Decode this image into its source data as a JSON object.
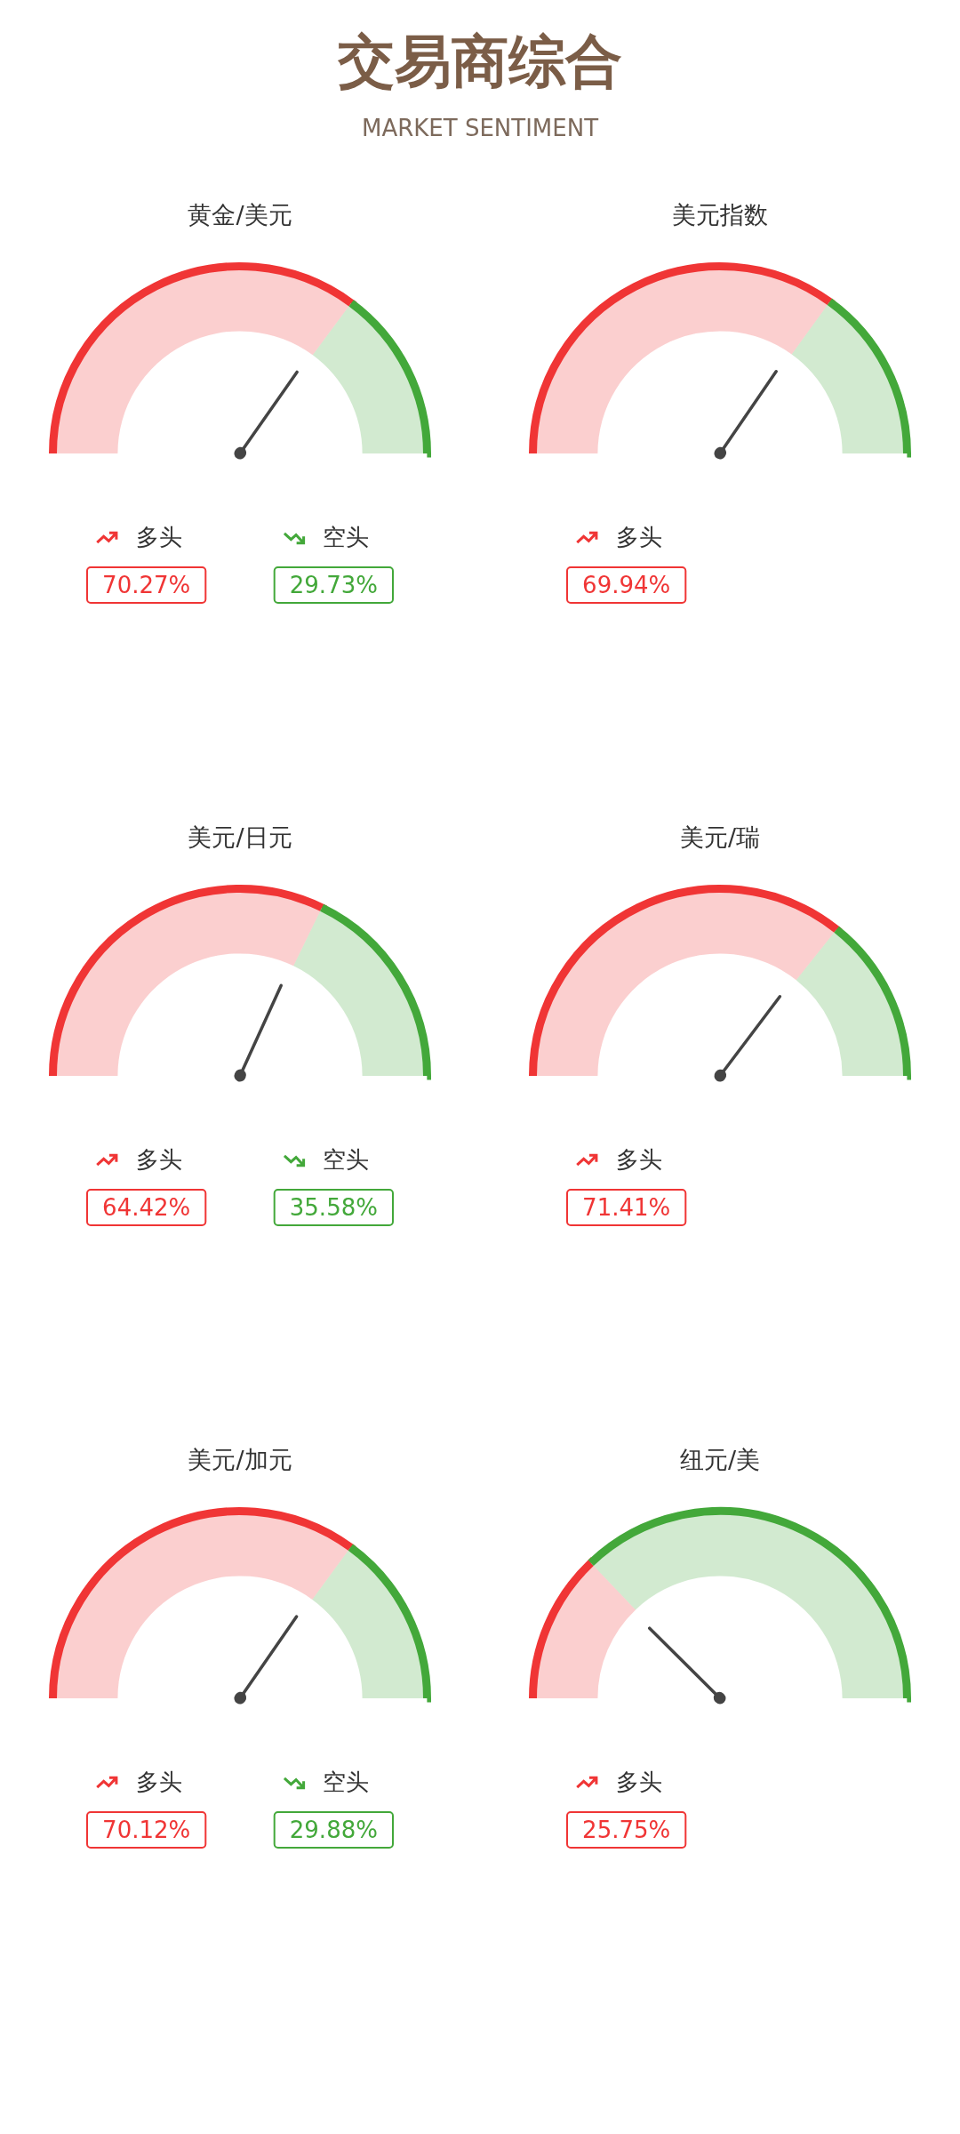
{
  "chart_data": [
    {
      "type": "other",
      "title": "交易商综合",
      "subtitle": "MARKET SENTIMENT"
    },
    {
      "type": "donut",
      "title": "黄金/美元",
      "categories": [
        "多头",
        "空头"
      ],
      "values": [
        70.27,
        29.73
      ],
      "colors": [
        "#f03535",
        "#43a83a"
      ],
      "value_labels": [
        "70.27%",
        "29.73%"
      ],
      "needle": "多头",
      "legend": "bottom"
    },
    {
      "type": "donut",
      "title": "美元指数",
      "categories": [
        "多头",
        null
      ],
      "values": [
        69.94,
        30.06
      ],
      "colors": [
        "#f03535",
        "#43a83a"
      ],
      "value_labels": [
        "69.94%",
        null
      ],
      "needle": "多头",
      "legend": "bottom"
    },
    {
      "type": "donut",
      "title": "美元/日元",
      "categories": [
        "多头",
        "空头"
      ],
      "values": [
        64.42,
        35.58
      ],
      "colors": [
        "#f03535",
        "#43a83a"
      ],
      "value_labels": [
        "64.42%",
        "35.58%"
      ],
      "needle": "多头",
      "legend": "bottom"
    },
    {
      "type": "donut",
      "title": "美元/瑞",
      "categories": [
        "多头",
        null
      ],
      "values": [
        71.41,
        28.59
      ],
      "colors": [
        "#f03535",
        "#43a83a"
      ],
      "value_labels": [
        "71.41%",
        null
      ],
      "needle": "多头",
      "legend": "bottom"
    },
    {
      "type": "donut",
      "title": "美元/加元",
      "categories": [
        "多头",
        "空头"
      ],
      "values": [
        70.12,
        29.88
      ],
      "colors": [
        "#f03535",
        "#43a83a"
      ],
      "value_labels": [
        "70.12%",
        "29.88%"
      ],
      "needle": "多头",
      "legend": "bottom"
    },
    {
      "type": "donut",
      "title": "纽元/美",
      "categories": [
        "多头",
        null
      ],
      "values": [
        25.75,
        74.25
      ],
      "colors": [
        "#f03535",
        "#43a83a"
      ],
      "value_labels": [
        "25.75%",
        null
      ],
      "needle": "多头",
      "legend": "bottom"
    }
  ]
}
